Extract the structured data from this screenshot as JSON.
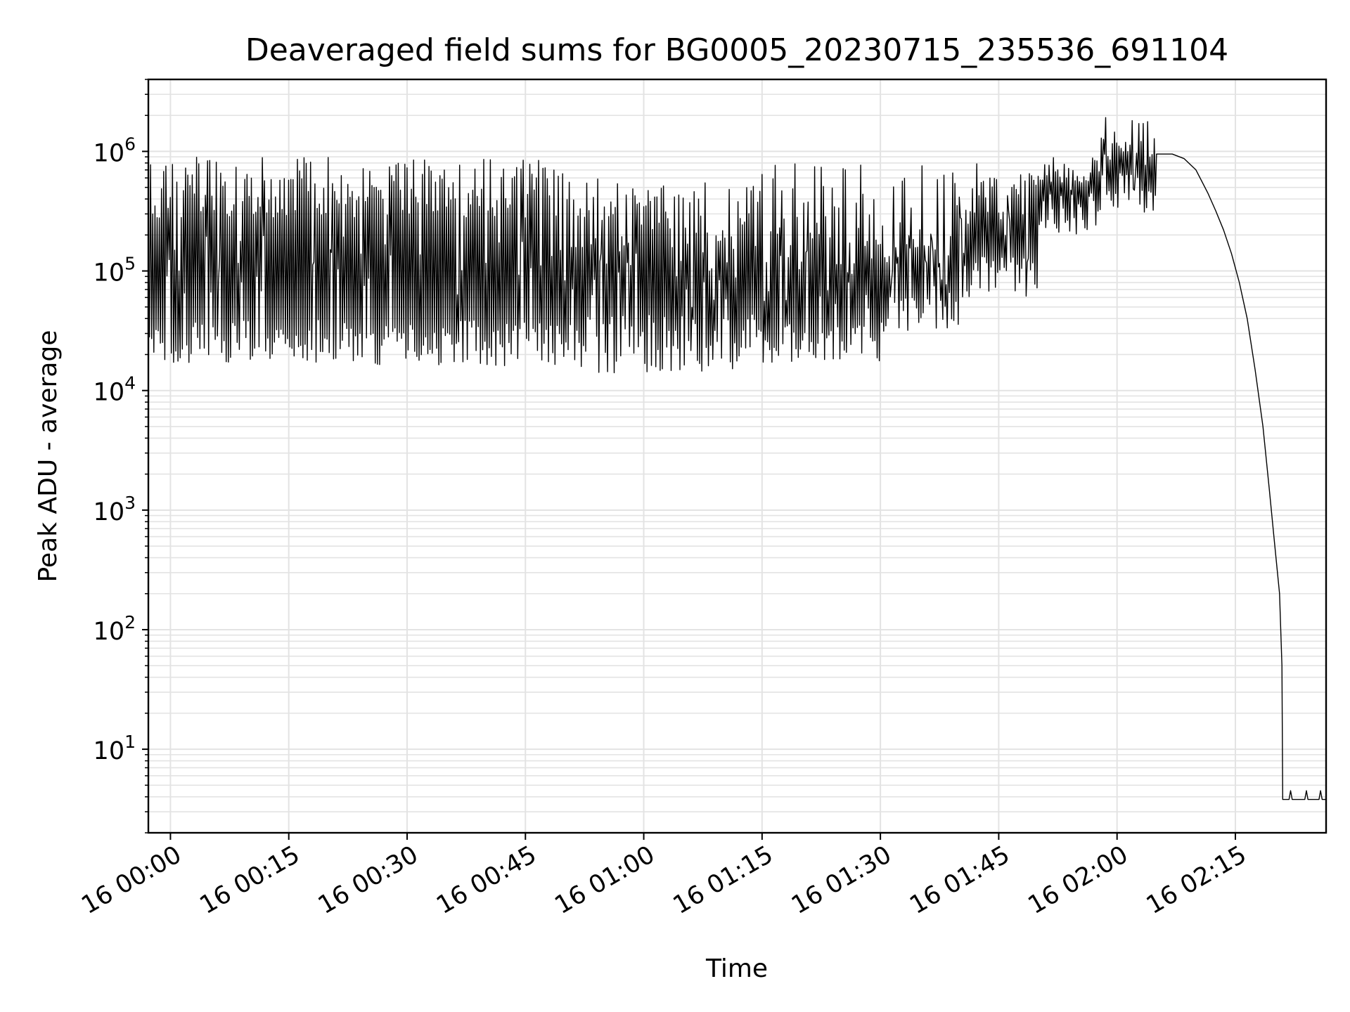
{
  "chart_data": {
    "type": "line",
    "title": "Deaveraged field sums for BG0005_20230715_235536_691104",
    "xlabel": "Time",
    "ylabel": "Peak ADU - average",
    "yscale": "log",
    "ylim": [
      2,
      4000000
    ],
    "xlim_minutes": [
      -2.8,
      146.5
    ],
    "grid": true,
    "x_ticks": [
      {
        "minutes": 0,
        "label": "16 00:00"
      },
      {
        "minutes": 15,
        "label": "16 00:15"
      },
      {
        "minutes": 30,
        "label": "16 00:30"
      },
      {
        "minutes": 45,
        "label": "16 00:45"
      },
      {
        "minutes": 60,
        "label": "16 01:00"
      },
      {
        "minutes": 75,
        "label": "16 01:15"
      },
      {
        "minutes": 90,
        "label": "16 01:30"
      },
      {
        "minutes": 105,
        "label": "16 01:45"
      },
      {
        "minutes": 120,
        "label": "16 02:00"
      },
      {
        "minutes": 135,
        "label": "16 02:15"
      }
    ],
    "y_ticks": [
      {
        "exp": 1,
        "base": "10",
        "sup": "1"
      },
      {
        "exp": 2,
        "base": "10",
        "sup": "2"
      },
      {
        "exp": 3,
        "base": "10",
        "sup": "3"
      },
      {
        "exp": 4,
        "base": "10",
        "sup": "4"
      },
      {
        "exp": 5,
        "base": "10",
        "sup": "5"
      },
      {
        "exp": 6,
        "base": "10",
        "sup": "6"
      }
    ],
    "series": [
      {
        "color": "#000000",
        "segments": [
          {
            "t0": -2.8,
            "t1": 50,
            "low": 25000,
            "high": 500000,
            "low_min": 16000,
            "high_max": 900000
          },
          {
            "t0": 50,
            "t1": 75,
            "low": 25000,
            "high": 300000,
            "low_min": 14000,
            "high_max": 600000
          },
          {
            "t0": 75,
            "t1": 90,
            "low": 25000,
            "high": 300000,
            "low_min": 17000,
            "high_max": 800000
          },
          {
            "t0": 90,
            "t1": 100,
            "low": 45000,
            "high": 250000,
            "low_min": 30000,
            "high_max": 800000
          },
          {
            "t0": 100,
            "t1": 110,
            "low": 90000,
            "high": 450000,
            "low_min": 60000,
            "high_max": 800000
          },
          {
            "t0": 110,
            "t1": 118,
            "low": 300000,
            "high": 700000,
            "low_min": 200000,
            "high_max": 900000
          },
          {
            "t0": 118,
            "t1": 125,
            "low": 450000,
            "high": 1200000,
            "low_min": 300000,
            "high_max": 2000000
          }
        ],
        "decay": [
          {
            "t": 125.0,
            "v": 950000
          },
          {
            "t": 127.0,
            "v": 950000
          },
          {
            "t": 128.5,
            "v": 870000
          },
          {
            "t": 130.0,
            "v": 700000
          },
          {
            "t": 131.5,
            "v": 450000
          },
          {
            "t": 132.5,
            "v": 320000
          },
          {
            "t": 133.5,
            "v": 220000
          },
          {
            "t": 134.5,
            "v": 140000
          },
          {
            "t": 135.5,
            "v": 80000
          },
          {
            "t": 136.5,
            "v": 40000
          },
          {
            "t": 137.5,
            "v": 15000
          },
          {
            "t": 138.5,
            "v": 5000
          },
          {
            "t": 139.3,
            "v": 1500
          },
          {
            "t": 140.0,
            "v": 500
          },
          {
            "t": 140.6,
            "v": 200
          },
          {
            "t": 140.9,
            "v": 50
          },
          {
            "t": 141.0,
            "v": 3.8
          },
          {
            "t": 141.8,
            "v": 3.8
          },
          {
            "t": 142.0,
            "v": 4.5
          },
          {
            "t": 142.2,
            "v": 3.8
          },
          {
            "t": 143.8,
            "v": 3.8
          },
          {
            "t": 144.0,
            "v": 4.5
          },
          {
            "t": 144.2,
            "v": 3.8
          },
          {
            "t": 145.6,
            "v": 3.8
          },
          {
            "t": 145.8,
            "v": 4.5
          },
          {
            "t": 146.0,
            "v": 3.8
          },
          {
            "t": 146.5,
            "v": 3.8
          }
        ]
      }
    ]
  }
}
